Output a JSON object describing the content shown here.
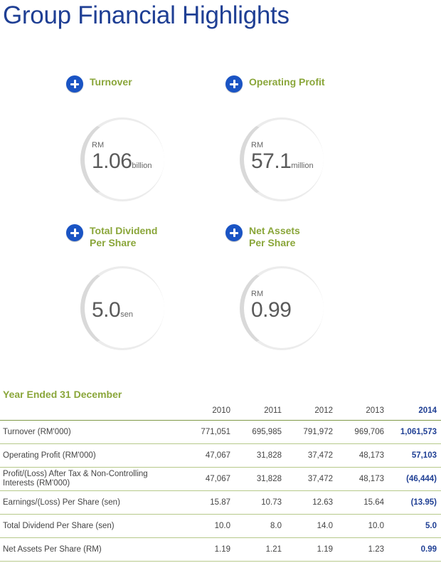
{
  "title": "Group Financial Highlights",
  "highlights": [
    {
      "label_lines": [
        "Turnover"
      ],
      "currency": "RM",
      "value": "1.06",
      "unit": "billion"
    },
    {
      "label_lines": [
        "Operating Profit"
      ],
      "currency": "RM",
      "value": "57.1",
      "unit": "million"
    },
    {
      "label_lines": [
        "Total Dividend",
        "Per Share"
      ],
      "currency": "",
      "value": "5.0",
      "unit": "sen"
    },
    {
      "label_lines": [
        "Net Assets",
        "Per Share"
      ],
      "currency": "RM",
      "value": "0.99",
      "unit": ""
    }
  ],
  "table": {
    "title": "Year Ended 31 December",
    "years": [
      "2010",
      "2011",
      "2012",
      "2013",
      "2014"
    ],
    "rows": [
      {
        "label": "Turnover (RM'000)",
        "values": [
          "771,051",
          "695,985",
          "791,972",
          "969,706",
          "1,061,573"
        ]
      },
      {
        "label": "Operating Profit (RM'000)",
        "values": [
          "47,067",
          "31,828",
          "37,472",
          "48,173",
          "57,103"
        ]
      },
      {
        "label": "Profit/(Loss) After Tax & Non-Controlling Interests (RM'000)",
        "values": [
          "47,067",
          "31,828",
          "37,472",
          "48,173",
          "(46,444)"
        ]
      },
      {
        "label": "Earnings/(Loss) Per Share (sen)",
        "values": [
          "15.87",
          "10.73",
          "12.63",
          "15.64",
          "(13.95)"
        ]
      },
      {
        "label": "Total Dividend Per Share (sen)",
        "values": [
          "10.0",
          "8.0",
          "14.0",
          "10.0",
          "5.0"
        ]
      },
      {
        "label": "Net Assets Per Share (RM)",
        "values": [
          "1.19",
          "1.21",
          "1.19",
          "1.23",
          "0.99"
        ]
      }
    ]
  },
  "colors": {
    "title_blue": "#1f3f94",
    "label_green": "#8aa63a",
    "icon_blue": "#1a54c4"
  }
}
